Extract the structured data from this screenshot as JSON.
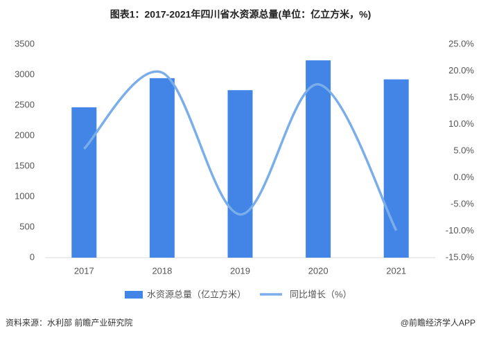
{
  "chart_data": {
    "type": "bar-line",
    "title": "图表1：2017-2021年四川省水资源总量(单位：亿立方米，%)",
    "categories": [
      "2017",
      "2018",
      "2019",
      "2020",
      "2021"
    ],
    "series": [
      {
        "name": "水资源总量（亿立方米）",
        "color": "#4285e6",
        "type": "bar",
        "values": [
          2467,
          2945,
          2748,
          3237,
          2925
        ]
      },
      {
        "name": "同比增长（%）",
        "color": "#7aaeea",
        "type": "line",
        "axis": "y2",
        "values": [
          5.4,
          19.7,
          -6.9,
          17.5,
          -9.9
        ]
      }
    ],
    "ylim": [
      0,
      3500
    ],
    "yticks": [
      0,
      500,
      1000,
      1500,
      2000,
      2500,
      3000,
      3500
    ],
    "y2lim": [
      -15,
      25
    ],
    "y2ticks": [
      {
        "value": -15,
        "label": "-15.0%"
      },
      {
        "value": -10,
        "label": "-10.0%"
      },
      {
        "value": -5,
        "label": "-5.0%"
      },
      {
        "value": 0,
        "label": "0.0%"
      },
      {
        "value": 5,
        "label": "5.0%"
      },
      {
        "value": 10,
        "label": "10.0%"
      },
      {
        "value": 15,
        "label": "15.0%"
      },
      {
        "value": 20,
        "label": "20.0%"
      },
      {
        "value": 25,
        "label": "25.0%"
      }
    ],
    "grid": false,
    "source": "资料来源：水利部 前瞻产业研究院",
    "credit": "@前瞻经济学人APP"
  }
}
